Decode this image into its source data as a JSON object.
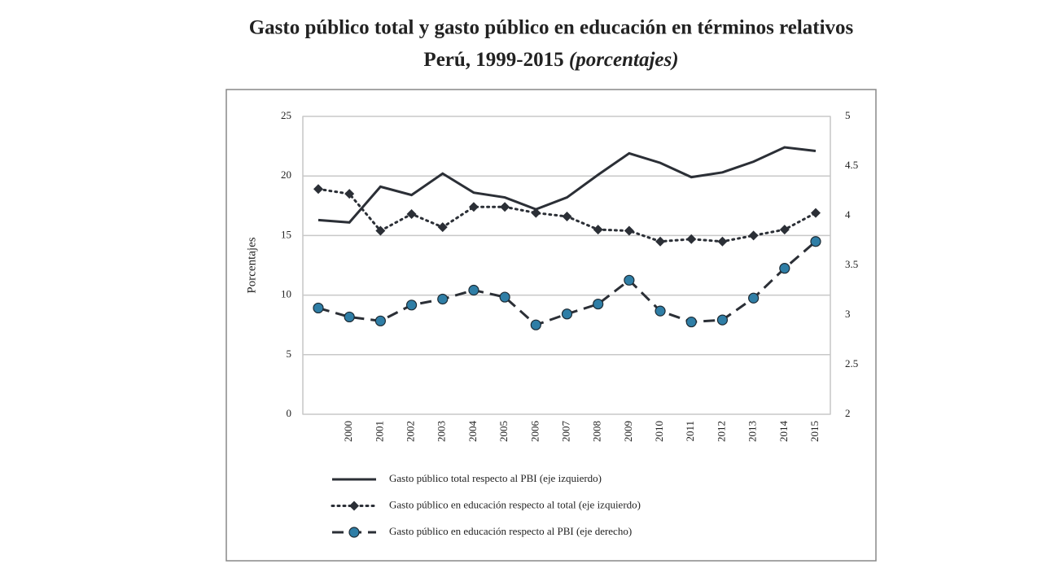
{
  "chart_data": {
    "type": "line",
    "title": "Gasto público total y gasto público en educación en términos relativos",
    "subtitle": "Perú, 1999-2015",
    "subtitle_note": "(porcentajes)",
    "ylabel": "Porcentajes",
    "categories": [
      null,
      "2000",
      "2001",
      "2002",
      "2003",
      "2004",
      "2005",
      "2006",
      "2007",
      "2008",
      "2009",
      "2010",
      "2011",
      "2012",
      "2013",
      "2014",
      "2015"
    ],
    "ylim": [
      0,
      25
    ],
    "yticks": [
      0,
      5,
      10,
      15,
      20,
      25
    ],
    "y2lim": [
      2,
      5
    ],
    "y2ticks": [
      2,
      2.5,
      3,
      3.5,
      4,
      4.5,
      5
    ],
    "grid": true,
    "legend": "bottom",
    "series": [
      {
        "name": "Gasto público total respecto al PBI (eje izquierdo)",
        "color": "#2b2f36",
        "style": "solid",
        "marker": "none",
        "values": [
          16.3,
          16.1,
          19.1,
          18.4,
          20.2,
          18.6,
          18.2,
          17.2,
          18.2,
          20.1,
          21.9,
          21.1,
          19.9,
          20.3,
          21.2,
          22.4,
          22.1
        ]
      },
      {
        "name": "Gasto público en educación respecto al total (eje izquierdo)",
        "color": "#2b2f36",
        "style": "dotted",
        "marker": "diamond",
        "values": [
          18.9,
          18.5,
          15.4,
          16.8,
          15.7,
          17.4,
          17.4,
          16.9,
          16.6,
          15.5,
          15.4,
          14.5,
          14.7,
          14.5,
          15.0,
          15.5,
          16.9
        ]
      },
      {
        "name": "Gasto público en educación respecto al PBI (eje derecho)",
        "color": "#2b2f36",
        "marker_color": "#2f7ea6",
        "style": "dashed",
        "marker": "circle",
        "axis": "y2",
        "values": [
          3.07,
          2.98,
          2.94,
          3.1,
          3.16,
          3.25,
          3.18,
          2.9,
          3.01,
          3.11,
          3.35,
          3.04,
          2.93,
          2.95,
          3.17,
          3.47,
          3.74
        ]
      }
    ]
  }
}
